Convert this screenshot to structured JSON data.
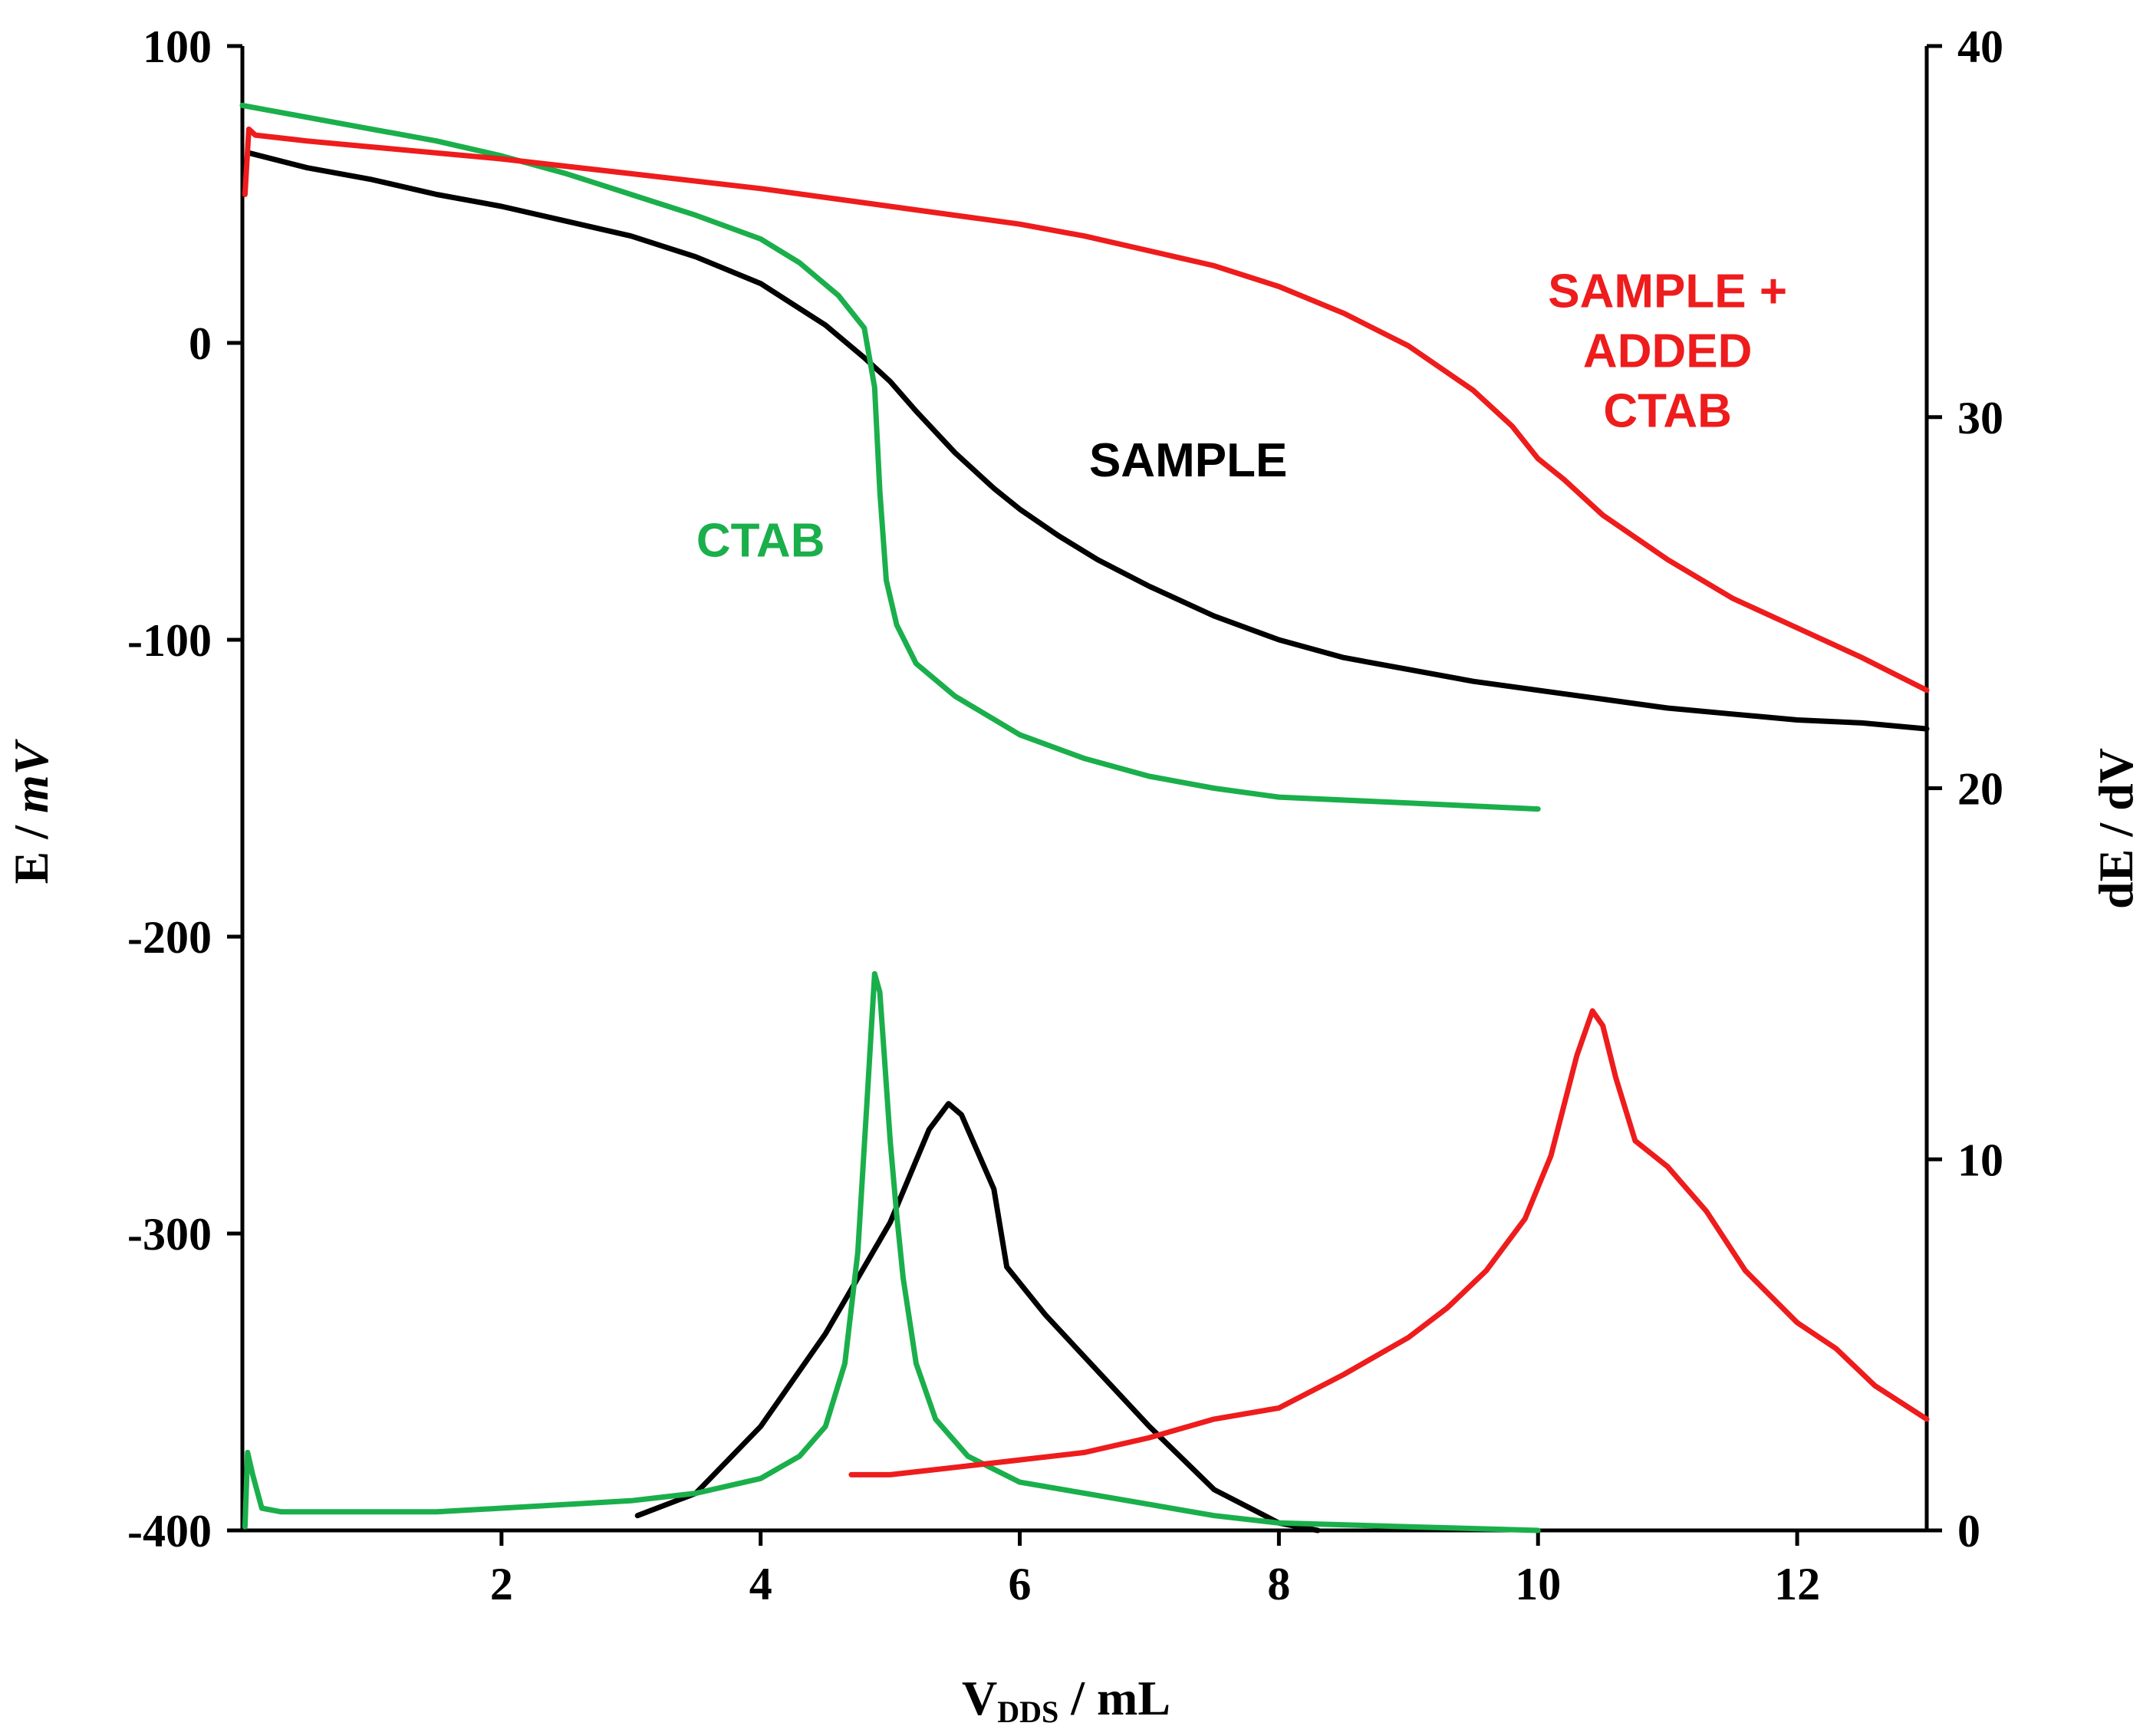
{
  "chart_data": {
    "type": "line",
    "title": "",
    "xlabel": {
      "main": "V",
      "sub": "DDS",
      "rest": " / mL"
    },
    "ylabel_left": {
      "main": "E / ",
      "italic": "mV"
    },
    "ylabel_right": "dE / dV",
    "xlim": [
      0,
      13
    ],
    "ylim_left": [
      -400,
      100
    ],
    "ylim_right": [
      0,
      40
    ],
    "x_ticks": [
      2,
      4,
      6,
      8,
      10,
      12
    ],
    "y_left_ticks": [
      100,
      0,
      -100,
      -200,
      -300,
      -400
    ],
    "y_right_ticks": [
      40,
      30,
      20,
      10,
      0
    ],
    "grid": false,
    "legend": "none",
    "colors": {
      "sample": "#000000",
      "ctab": "#1aaf4b",
      "sample_added": "#ee1c1c"
    },
    "annotations": [
      {
        "key": "ctab",
        "lines": [
          "CTAB"
        ],
        "color": "#1aaf4b",
        "x": 4.0,
        "y": -72
      },
      {
        "key": "sample",
        "lines": [
          "SAMPLE"
        ],
        "color": "#000000",
        "x": 7.3,
        "y": -45
      },
      {
        "key": "sample_added",
        "lines": [
          "SAMPLE +",
          "ADDED",
          "CTAB"
        ],
        "color": "#ee1c1c",
        "x": 11.0,
        "y": 12
      }
    ],
    "series": [
      {
        "key": "sample_E",
        "axis": "left",
        "color": "#000000",
        "x": [
          0.05,
          0.5,
          1,
          1.5,
          2,
          2.5,
          3,
          3.5,
          4,
          4.5,
          4.8,
          5.0,
          5.2,
          5.5,
          5.8,
          6.0,
          6.3,
          6.6,
          7.0,
          7.5,
          8.0,
          8.5,
          9.0,
          9.5,
          10.0,
          10.5,
          11.0,
          11.5,
          12.0,
          12.5,
          13.0
        ],
        "y": [
          64,
          59,
          55,
          50,
          46,
          41,
          36,
          29,
          20,
          6,
          -5,
          -13,
          -23,
          -37,
          -49,
          -56,
          -65,
          -73,
          -82,
          -92,
          -100,
          -106,
          -110,
          -114,
          -117,
          -120,
          -123,
          -125,
          -127,
          -128,
          -130
        ]
      },
      {
        "key": "ctab_E",
        "axis": "left",
        "color": "#1aaf4b",
        "x": [
          0,
          0.5,
          1,
          1.5,
          2,
          2.5,
          3,
          3.5,
          4,
          4.3,
          4.6,
          4.8,
          4.88,
          4.92,
          4.97,
          5.05,
          5.2,
          5.5,
          6.0,
          6.5,
          7.0,
          7.5,
          8.0,
          9.0,
          10.0
        ],
        "y": [
          80,
          76,
          72,
          68,
          63,
          57,
          50,
          43,
          35,
          27,
          16,
          5,
          -15,
          -50,
          -80,
          -95,
          -108,
          -119,
          -132,
          -140,
          -146,
          -150,
          -153,
          -155,
          -157
        ]
      },
      {
        "key": "sample_added_E",
        "axis": "left",
        "color": "#ee1c1c",
        "x": [
          0.02,
          0.05,
          0.1,
          0.5,
          1,
          2,
          3,
          4,
          5,
          6,
          6.5,
          7,
          7.5,
          8,
          8.5,
          9.0,
          9.5,
          9.8,
          10.0,
          10.2,
          10.5,
          11.0,
          11.5,
          12.0,
          12.5,
          13.0
        ],
        "y": [
          50,
          72,
          70,
          68,
          66,
          62,
          57,
          52,
          46,
          40,
          36,
          31,
          26,
          19,
          10,
          -1,
          -16,
          -28,
          -39,
          -46,
          -58,
          -73,
          -86,
          -96,
          -106,
          -117
        ]
      },
      {
        "key": "sample_dEdV",
        "axis": "right",
        "color": "#000000",
        "x": [
          3.05,
          3.5,
          4.0,
          4.5,
          5.0,
          5.3,
          5.45,
          5.55,
          5.7,
          5.8,
          5.9,
          6.2,
          6.6,
          7.0,
          7.5,
          8.0,
          8.3
        ],
        "y": [
          0.4,
          1.0,
          2.8,
          5.3,
          8.3,
          10.8,
          11.5,
          11.2,
          10.0,
          9.2,
          7.1,
          5.8,
          4.3,
          2.8,
          1.1,
          0.2,
          0
        ]
      },
      {
        "key": "ctab_dEdV",
        "axis": "right",
        "color": "#1aaf4b",
        "x": [
          0.02,
          0.04,
          0.08,
          0.15,
          0.3,
          1.0,
          1.5,
          2.0,
          2.5,
          3.0,
          3.5,
          4.0,
          4.3,
          4.5,
          4.65,
          4.75,
          4.82,
          4.88,
          4.92,
          4.96,
          5.0,
          5.05,
          5.1,
          5.2,
          5.35,
          5.6,
          6.0,
          6.5,
          7.0,
          7.5,
          8.0,
          9.0,
          10.0
        ],
        "y": [
          0.1,
          2.1,
          1.5,
          0.6,
          0.5,
          0.5,
          0.5,
          0.6,
          0.7,
          0.8,
          1.0,
          1.4,
          2.0,
          2.8,
          4.5,
          7.5,
          11.5,
          15.0,
          14.5,
          12.5,
          10.5,
          8.5,
          6.8,
          4.5,
          3.0,
          2.0,
          1.3,
          1.0,
          0.7,
          0.4,
          0.2,
          0.1,
          0
        ]
      },
      {
        "key": "sample_added_dEdV",
        "axis": "right",
        "color": "#ee1c1c",
        "x": [
          4.7,
          5.0,
          5.5,
          6.0,
          6.5,
          7.0,
          7.5,
          8.0,
          8.5,
          9.0,
          9.3,
          9.6,
          9.9,
          10.1,
          10.3,
          10.42,
          10.5,
          10.6,
          10.75,
          11.0,
          11.3,
          11.6,
          12.0,
          12.3,
          12.6,
          13.0
        ],
        "y": [
          1.5,
          1.5,
          1.7,
          1.9,
          2.1,
          2.5,
          3.0,
          3.3,
          4.2,
          5.2,
          6.0,
          7.0,
          8.4,
          10.1,
          12.8,
          14.0,
          13.6,
          12.2,
          10.5,
          9.8,
          8.6,
          7.0,
          5.6,
          4.9,
          3.9,
          3.0
        ]
      }
    ]
  }
}
